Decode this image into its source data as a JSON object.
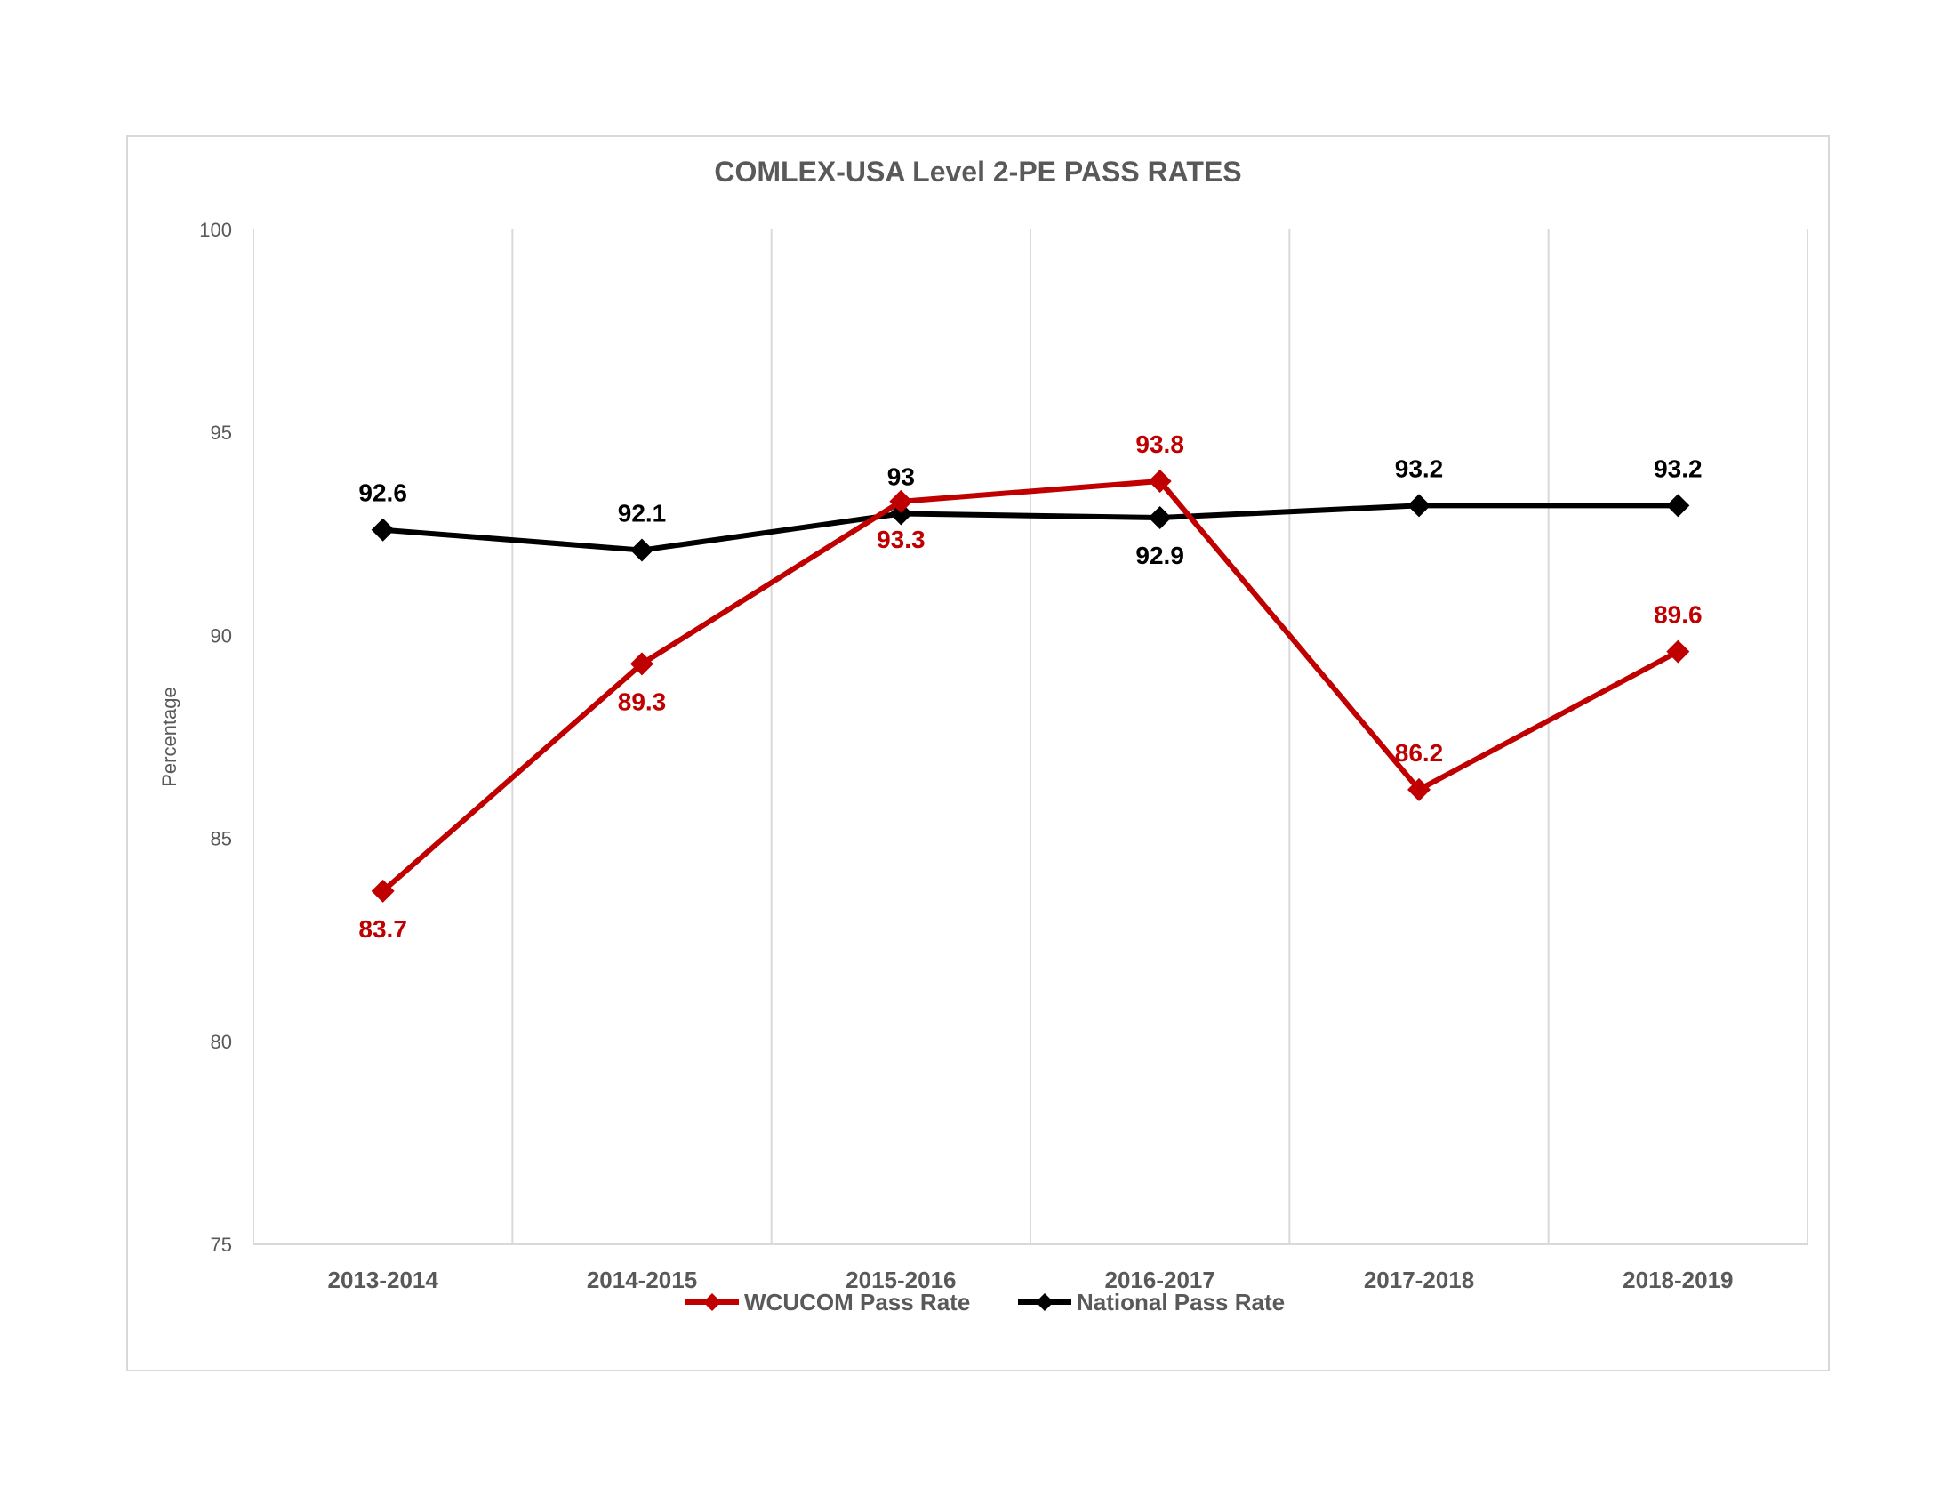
{
  "chart_data": {
    "type": "line",
    "title": "COMLEX-USA Level 2-PE PASS RATES",
    "ylabel": "Percentage",
    "xlabel": "",
    "ylim": [
      75,
      100
    ],
    "y_ticks": [
      "75",
      "80",
      "85",
      "90",
      "95",
      "100"
    ],
    "categories": [
      "2013-2014",
      "2014-2015",
      "2015-2016",
      "2016-2017",
      "2017-2018",
      "2018-2019"
    ],
    "grid": "vertical",
    "legend_position": "bottom",
    "series": [
      {
        "name": "WCUCOM Pass Rate",
        "color": "#c00000",
        "values": [
          83.7,
          89.3,
          93.3,
          93.8,
          86.2,
          89.6
        ],
        "labels": [
          "83.7",
          "89.3",
          "93.3",
          "93.8",
          "86.2",
          "89.6"
        ]
      },
      {
        "name": "National Pass Rate",
        "color": "#000000",
        "values": [
          92.6,
          92.1,
          93,
          92.9,
          93.2,
          93.2
        ],
        "labels": [
          "92.6",
          "92.1",
          "93",
          "92.9",
          "93.2",
          "93.2"
        ]
      }
    ]
  }
}
